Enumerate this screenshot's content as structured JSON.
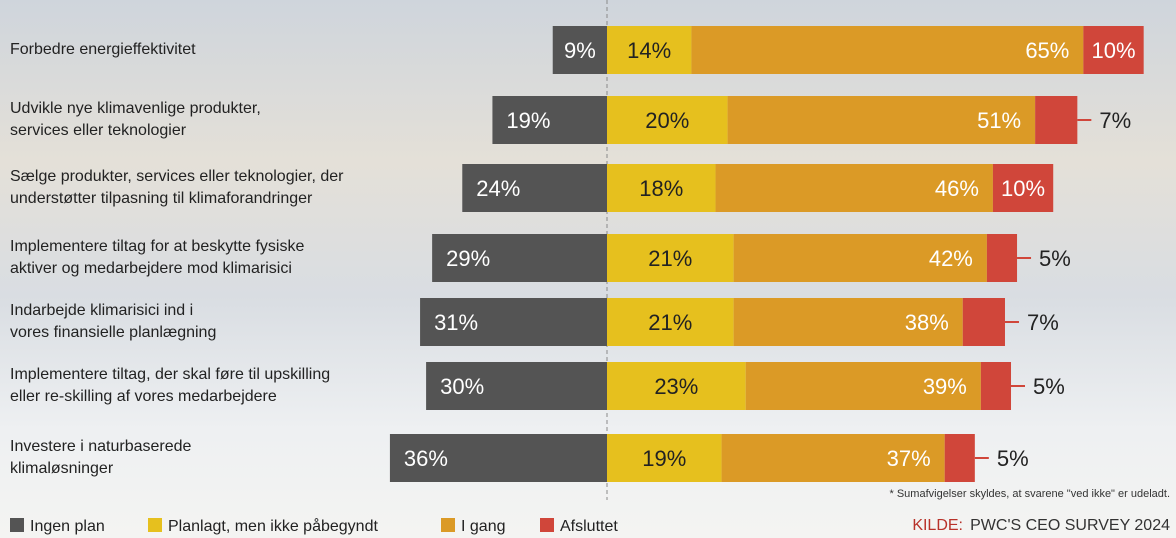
{
  "chart_data": {
    "type": "diverging-stacked-bar",
    "categories": [
      "Forbedre energieffektivitet",
      "Udvikle nye klimavenlige produkter,\nservices eller teknologier",
      "Sælge produkter, services eller teknologier, der\nunderstøtter tilpasning til klimaforandringer",
      "Implementere tiltag for at beskytte fysiske\naktiver og medarbejdere mod klimarisici",
      "Indarbejde klimarisici ind i\nvores finansielle planlægning",
      "Implementere tiltag, der skal føre til upskilling\neller re-skilling af vores medarbejdere",
      "Investere i naturbaserede\nklimaløsninger"
    ],
    "series": [
      {
        "name": "Ingen plan",
        "color": "#545454",
        "values": [
          9,
          19,
          24,
          29,
          31,
          30,
          36
        ],
        "value_labels": [
          "9%",
          "19%",
          "24%",
          "29%",
          "31%",
          "30%",
          "36%"
        ]
      },
      {
        "name": "Planlagt, men ikke påbegyndt",
        "color": "#e6c01e",
        "values": [
          14,
          20,
          18,
          21,
          21,
          23,
          19
        ],
        "value_labels": [
          "14%",
          "20%",
          "18%",
          "21%",
          "21%",
          "23%",
          "19%"
        ]
      },
      {
        "name": "I gang",
        "color": "#db9a26",
        "values": [
          65,
          51,
          46,
          42,
          38,
          39,
          37
        ],
        "value_labels": [
          "65%",
          "51%",
          "46%",
          "42%",
          "38%",
          "39%",
          "37%"
        ]
      },
      {
        "name": "Afsluttet",
        "color": "#d0463a",
        "values": [
          10,
          7,
          10,
          5,
          7,
          5,
          5
        ],
        "value_labels": [
          "10%",
          "7%",
          "10%",
          "5%",
          "7%",
          "5%",
          "5%"
        ]
      }
    ],
    "footnote": "* Sumafvigelser skyldes, at svarene \"ved ikke\" er udeladt.",
    "source_label": "KILDE:",
    "source": "PWC'S CEO SURVEY 2024"
  }
}
